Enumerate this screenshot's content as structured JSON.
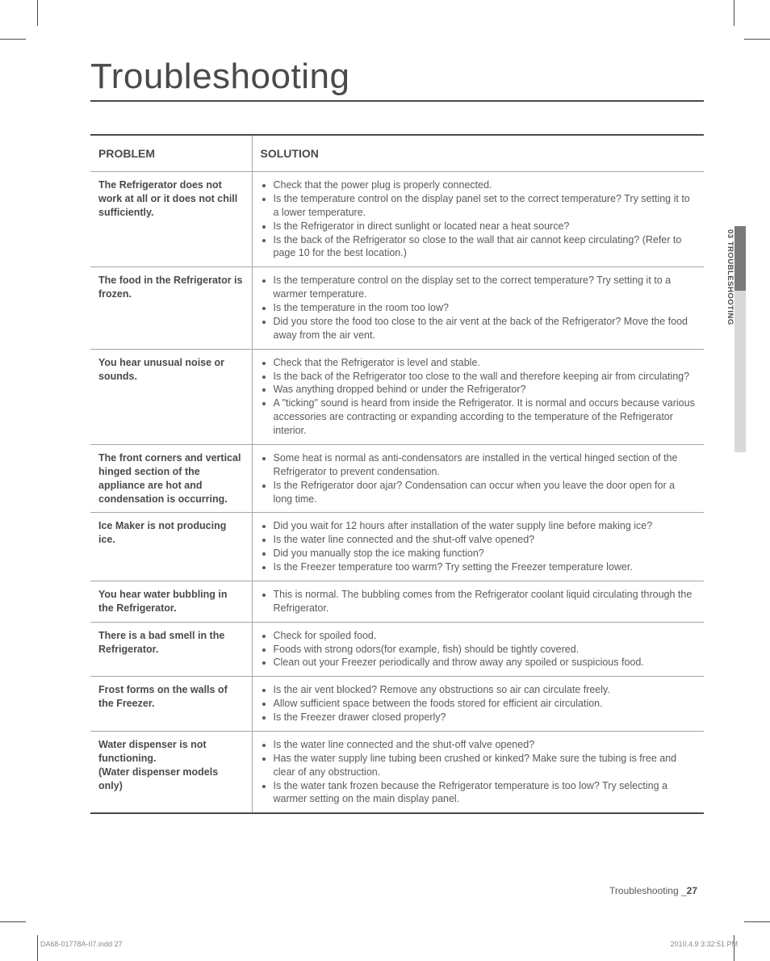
{
  "title": "Troubleshooting",
  "table": {
    "header": {
      "problem": "PROBLEM",
      "solution": "SOLUTION"
    },
    "rows": [
      {
        "problem": "The Refrigerator does not work at all or it does not chill sufficiently.",
        "solutions": [
          "Check that the power plug is properly connected.",
          "Is the temperature control on the display panel set to the correct temperature? Try setting it to a lower temperature.",
          "Is the Refrigerator in direct sunlight or located near a heat source?",
          "Is the back of the Refrigerator so close to the wall that air cannot keep circulating? (Refer to page 10 for the best location.)"
        ]
      },
      {
        "problem": "The food in the Refrigerator is frozen.",
        "solutions": [
          "Is the temperature control on the display set to the correct temperature? Try setting it to a warmer temperature.",
          "Is the temperature in the room too low?",
          "Did you store the food too close to the air vent at the back of the Refrigerator? Move the food away from the air vent."
        ]
      },
      {
        "problem": "You hear unusual noise or sounds.",
        "solutions": [
          "Check that the Refrigerator is level and stable.",
          "Is the back of the Refrigerator too close to the wall and therefore keeping air from circulating?",
          "Was anything dropped behind or under the Refrigerator?",
          "A \"ticking\" sound is heard from inside the Refrigerator. It is normal and occurs because various accessories are contracting or expanding according to the temperature of the Refrigerator interior."
        ]
      },
      {
        "problem": "The front corners and vertical hinged section of the appliance are hot and condensation is occurring.",
        "solutions": [
          "Some heat is normal as anti-condensators are installed in the vertical hinged section of the Refrigerator to prevent condensation.",
          "Is the Refrigerator door ajar? Condensation can occur when you leave the door open for a long time."
        ]
      },
      {
        "problem": "Ice Maker is not producing ice.",
        "solutions": [
          "Did you wait for 12 hours after installation of the water supply line before making ice?",
          "Is the water line connected and the shut-off valve opened?",
          "Did you manually stop the ice making function?",
          "Is the Freezer temperature too warm? Try setting the Freezer temperature lower."
        ]
      },
      {
        "problem": "You hear water bubbling in the Refrigerator.",
        "solutions": [
          "This is normal. The bubbling comes from the Refrigerator coolant liquid circulating through the Refrigerator."
        ]
      },
      {
        "problem": "There is a bad smell in the Refrigerator.",
        "solutions": [
          "Check for spoiled food.",
          "Foods with strong odors(for example, fish) should be tightly covered.",
          "Clean out your Freezer periodically and throw away any spoiled or suspicious food."
        ]
      },
      {
        "problem": "Frost forms on the walls of the Freezer.",
        "solutions": [
          "Is the air vent blocked? Remove any obstructions so air can circulate freely.",
          "Allow sufficient space between the foods stored for efficient air circulation.",
          "Is the Freezer drawer closed properly?"
        ]
      },
      {
        "problem": "Water dispenser is not functioning.\n(Water dispenser models only)",
        "solutions": [
          "Is the water line connected and the shut-off valve opened?",
          "Has the water supply line tubing been crushed or kinked? Make sure the tubing is free and clear of any obstruction.",
          "Is the water tank frozen because the Refrigerator temperature is too low? Try selecting a warmer setting on the main display panel."
        ]
      }
    ]
  },
  "sideTab": "03 TROUBLESHOOTING",
  "footer": {
    "sectionName": "Troubleshooting _",
    "pageNumber": "27",
    "docId": "DA68-01778A-07.indd   27",
    "timestamp": "2010.4.9   3:32:51 PM"
  }
}
